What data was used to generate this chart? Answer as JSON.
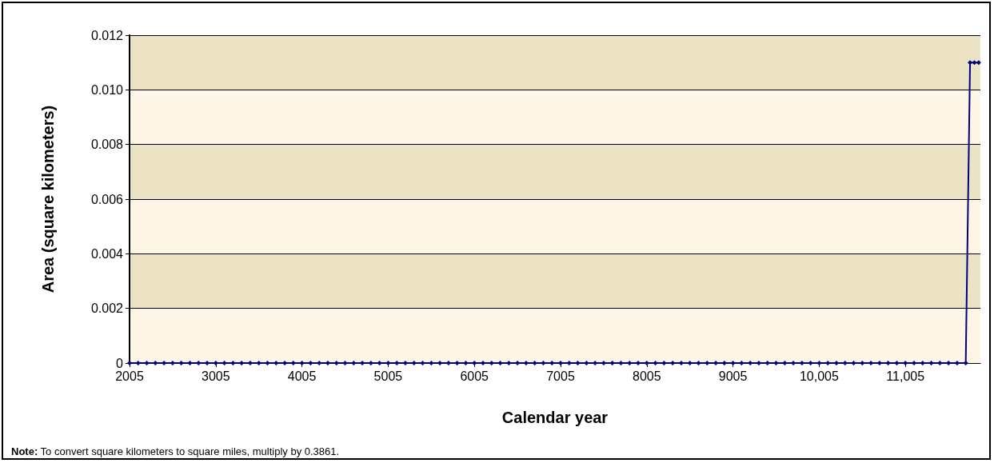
{
  "chart_data": {
    "type": "line",
    "xlabel": "Calendar year",
    "ylabel": "Area (square kilometers)",
    "annotations": [
      "Note: To convert square kilometers to square miles, multiply by 0.3861."
    ],
    "x": [
      2005,
      2105,
      2205,
      2305,
      2405,
      2505,
      2605,
      2705,
      2805,
      2905,
      3005,
      3105,
      3205,
      3305,
      3405,
      3505,
      3605,
      3705,
      3805,
      3905,
      4005,
      4105,
      4205,
      4305,
      4405,
      4505,
      4605,
      4705,
      4805,
      4905,
      5005,
      5105,
      5205,
      5305,
      5405,
      5505,
      5605,
      5705,
      5805,
      5905,
      6005,
      6105,
      6205,
      6305,
      6405,
      6505,
      6605,
      6705,
      6805,
      6905,
      7005,
      7105,
      7205,
      7305,
      7405,
      7505,
      7605,
      7705,
      7805,
      7905,
      8005,
      8105,
      8205,
      8305,
      8405,
      8505,
      8605,
      8705,
      8805,
      8905,
      9005,
      9105,
      9205,
      9305,
      9405,
      9505,
      9605,
      9705,
      9805,
      9905,
      10005,
      10105,
      10205,
      10305,
      10405,
      10505,
      10605,
      10705,
      10805,
      10905,
      11005,
      11105,
      11205,
      11305,
      11405,
      11505,
      11605,
      11705,
      11755,
      11805,
      11855
    ],
    "series": [
      {
        "color": "#000080",
        "values": [
          0,
          0,
          0,
          0,
          0,
          0,
          0,
          0,
          0,
          0,
          0,
          0,
          0,
          0,
          0,
          0,
          0,
          0,
          0,
          0,
          0,
          0,
          0,
          0,
          0,
          0,
          0,
          0,
          0,
          0,
          0,
          0,
          0,
          0,
          0,
          0,
          0,
          0,
          0,
          0,
          0,
          0,
          0,
          0,
          0,
          0,
          0,
          0,
          0,
          0,
          0,
          0,
          0,
          0,
          0,
          0,
          0,
          0,
          0,
          0,
          0,
          0,
          0,
          0,
          0,
          0,
          0,
          0,
          0,
          0,
          0,
          0,
          0,
          0,
          0,
          0,
          0,
          0,
          0,
          0,
          0,
          0,
          0,
          0,
          0,
          0,
          0,
          0,
          0,
          0,
          0,
          0,
          0,
          0,
          0,
          0,
          0,
          0,
          0.011,
          0.011,
          0.011
        ]
      }
    ],
    "xlim": [
      2005,
      11875
    ],
    "xticks": [
      2005,
      3005,
      4005,
      5005,
      6005,
      7005,
      8005,
      9005,
      {
        "value": 10005,
        "label": "10,005"
      },
      {
        "value": 11005,
        "label": "11,005"
      }
    ],
    "ylim": [
      0,
      0.012
    ],
    "yticks": [
      0,
      0.002,
      0.004,
      0.006,
      0.008,
      {
        "value": 0.01,
        "label": "0.010"
      },
      0.012
    ],
    "grid": "y",
    "marker": "diamond",
    "line_style": "solid"
  }
}
